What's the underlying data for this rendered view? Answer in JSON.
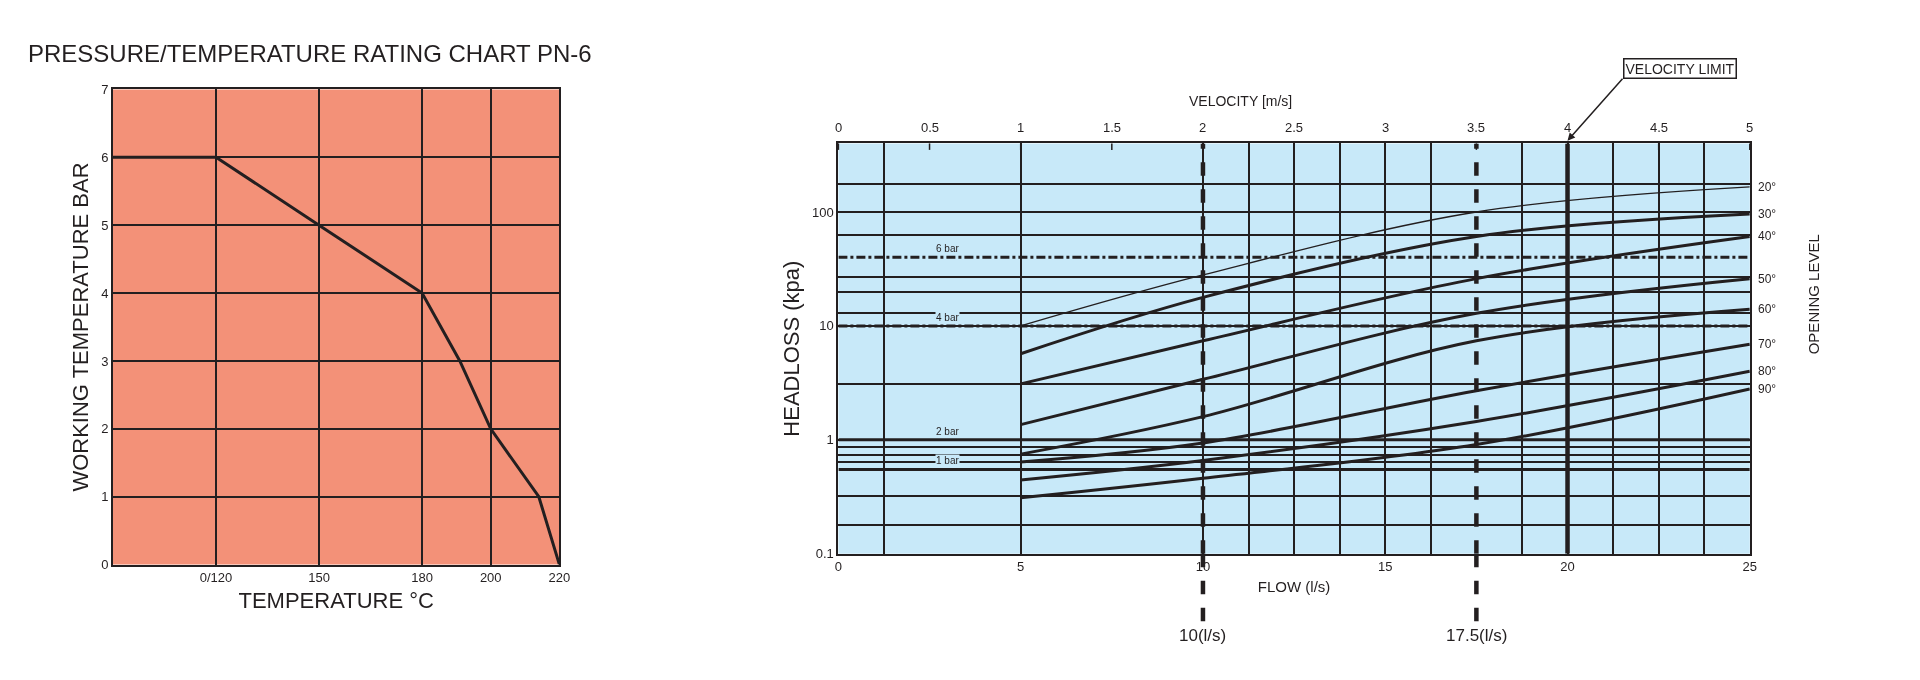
{
  "chart_data": [
    {
      "type": "line",
      "title": "PRESSURE/TEMPERATURE RATING CHART PN-6",
      "xlabel": "TEMPERATURE °C",
      "ylabel": "WORKING TEMPERATURE BAR",
      "x": [
        90,
        120,
        150,
        180,
        191,
        200,
        214,
        220
      ],
      "series": [
        {
          "color": "#231f20",
          "values": [
            6,
            6,
            5,
            4,
            3,
            2,
            1,
            0
          ]
        }
      ],
      "xlim": [
        90,
        220
      ],
      "xticks": [
        {
          "value": 120,
          "label": "0/120"
        },
        150,
        180,
        200,
        220
      ],
      "ylim": [
        0,
        7
      ],
      "yticks": [
        0,
        1,
        2,
        3,
        4,
        5,
        6,
        7
      ],
      "grid": true
    },
    {
      "type": "line",
      "log": "y",
      "xlabel": "FLOW (l/s)",
      "ylabel": "HEADLOSS (kpa)",
      "x2label": "VELOCITY [m/s]",
      "y2label": "OPENING LEVEL",
      "x": [
        5,
        10,
        17.5,
        25
      ],
      "series": [
        {
          "name": "20°",
          "color": "#231f20",
          "values": [
            10,
            28,
            100,
            166
          ]
        },
        {
          "name": "30°",
          "color": "#231f20",
          "values": [
            5.7,
            17.8,
            61,
            96
          ]
        },
        {
          "name": "40°",
          "color": "#231f20",
          "values": [
            3.1,
            7.4,
            26,
            61
          ]
        },
        {
          "name": "50°",
          "color": "#231f20",
          "values": [
            1.36,
            3.4,
            12.9,
            26
          ]
        },
        {
          "name": "60°",
          "color": "#231f20",
          "values": [
            0.75,
            1.6,
            7.4,
            14
          ]
        },
        {
          "name": "70°",
          "color": "#231f20",
          "values": [
            0.64,
            0.94,
            2.7,
            6.9
          ]
        },
        {
          "name": "80°",
          "color": "#231f20",
          "values": [
            0.445,
            0.66,
            1.45,
            4.0
          ]
        },
        {
          "name": "90°",
          "color": "#231f20",
          "values": [
            0.31,
            0.46,
            0.91,
            2.8
          ]
        }
      ],
      "xlim": [
        0,
        25
      ],
      "xticks": [
        0,
        {
          "value": 1.25,
          "label": null
        },
        5,
        10,
        {
          "value": 11.25,
          "label": null
        },
        {
          "value": 12.5,
          "label": null
        },
        {
          "value": 13.75,
          "label": null
        },
        15,
        {
          "value": 16.25,
          "label": null
        },
        {
          "value": 18.75,
          "label": null
        },
        20,
        {
          "value": 21.25,
          "label": null
        },
        {
          "value": 22.5,
          "label": null
        },
        {
          "value": 23.75,
          "label": null
        },
        25
      ],
      "x2lim": [
        0,
        5
      ],
      "x2ticks": [
        0,
        0.5,
        1,
        1.5,
        2,
        2.5,
        3,
        3.5,
        4,
        4.5,
        5
      ],
      "ylim": [
        0.1,
        400
      ],
      "yticks": [
        0.1,
        {
          "value": 0.18,
          "label": null
        },
        {
          "value": 0.32,
          "label": null
        },
        {
          "value": 0.64,
          "label": null
        },
        {
          "value": 0.74,
          "label": null
        },
        {
          "value": 0.87,
          "label": null
        },
        1,
        {
          "value": 3.1,
          "label": null
        },
        10,
        {
          "value": 13,
          "label": null
        },
        {
          "value": 20,
          "label": null
        },
        {
          "value": 27,
          "label": null
        },
        {
          "value": 63,
          "label": null
        },
        100,
        {
          "value": 175,
          "label": null
        }
      ],
      "grid": true,
      "ref_lines": [
        {
          "axis": "y",
          "value": 40,
          "label": "6 bar",
          "line_style": "dashed"
        },
        {
          "axis": "y",
          "value": 10,
          "label": "4 bar",
          "line_style": "dashed"
        },
        {
          "axis": "y",
          "value": 1,
          "label": "2 bar",
          "line_style": "solid"
        },
        {
          "axis": "y",
          "value": 0.55,
          "label": "1 bar",
          "line_style": "solid"
        },
        {
          "axis": "x",
          "value": 10,
          "label": "10(l/s)",
          "line_style": "dashed"
        },
        {
          "axis": "x",
          "value": 17.5,
          "label": "17.5(l/s)",
          "line_style": "dashed"
        },
        {
          "axis": "x",
          "value": 20,
          "line_style": "solid"
        }
      ],
      "annotations": [
        "VELOCITY LIMIT"
      ]
    }
  ]
}
